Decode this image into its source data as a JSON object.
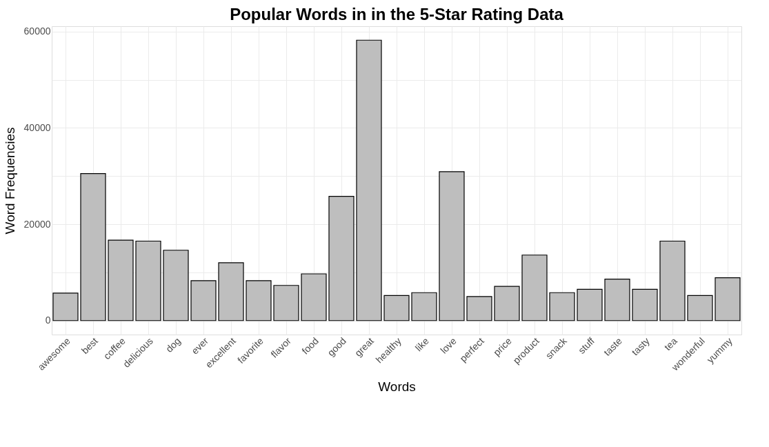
{
  "chart_data": {
    "type": "bar",
    "title": "Popular Words in in the 5-Star Rating Data",
    "xlabel": "Words",
    "ylabel": "Word Frequencies",
    "categories": [
      "awesome",
      "best",
      "coffee",
      "delicious",
      "dog",
      "ever",
      "excellent",
      "favorite",
      "flavor",
      "food",
      "good",
      "great",
      "healthy",
      "like",
      "love",
      "perfect",
      "price",
      "product",
      "snack",
      "stuff",
      "taste",
      "tasty",
      "tea",
      "wonderful",
      "yummy"
    ],
    "values": [
      5700,
      30500,
      16700,
      16500,
      14600,
      8300,
      12000,
      8300,
      7300,
      9700,
      25800,
      58200,
      5200,
      5800,
      30900,
      5000,
      7100,
      13600,
      5800,
      6500,
      8600,
      6500,
      16500,
      5200,
      8900
    ],
    "color": "#bebebe",
    "ylim": [
      -2900,
      61100
    ],
    "yticks": [
      0,
      {
        "value": 10000,
        "label": null
      },
      20000,
      {
        "value": 30000,
        "label": null
      },
      40000,
      {
        "value": 50000,
        "label": null
      },
      60000
    ],
    "grid": true
  }
}
